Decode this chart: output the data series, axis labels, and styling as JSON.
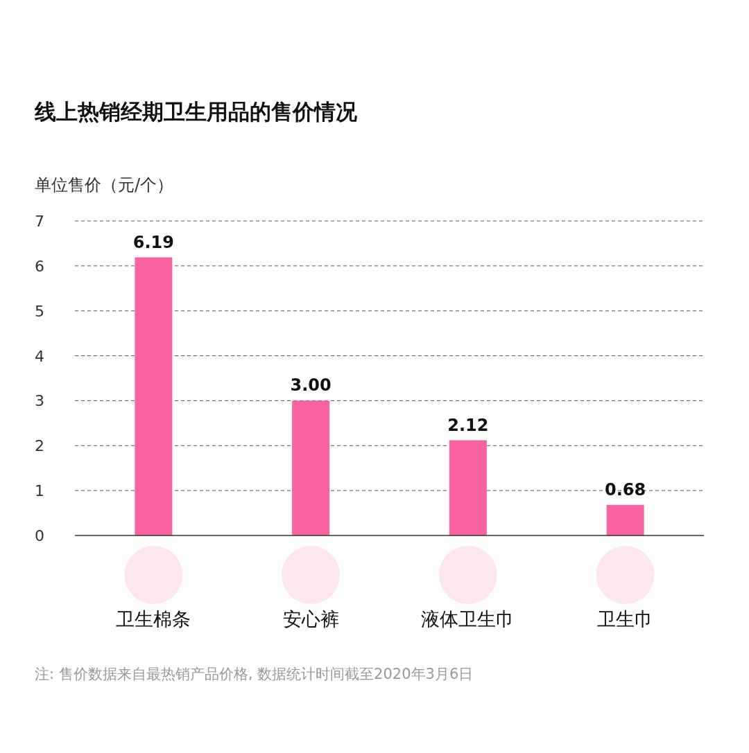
{
  "chart_data": {
    "type": "bar",
    "title": "线上热销经期卫生用品的售价情况",
    "ylabel": "单位售价（元/个）",
    "categories": [
      "卫生棉条",
      "安心裤",
      "液体卫生巾",
      "卫生巾"
    ],
    "values": [
      6.19,
      3.0,
      2.12,
      0.68
    ],
    "value_labels": [
      "6.19",
      "3.00",
      "2.12",
      "0.68"
    ],
    "color": "#f7629f",
    "ylim": [
      0,
      7
    ],
    "yticks": [
      0,
      1,
      2,
      3,
      4,
      5,
      6,
      7
    ],
    "grid": "y",
    "annotations": [
      "注: 售价数据来自最热销产品价格, 数据统计时间截至2020年3月6日"
    ]
  }
}
